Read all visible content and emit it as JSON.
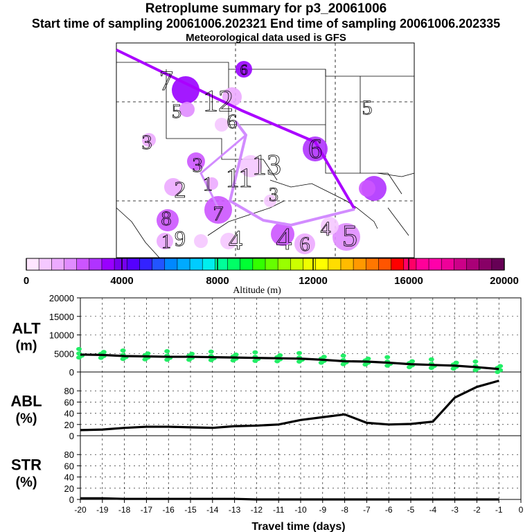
{
  "header": {
    "title": "Retroplume summary for p3_20061006",
    "sampling": "Start time of sampling 20061006.202321     End time of sampling 20061006.202335",
    "meteo": "Meteorological data used is GFS"
  },
  "colorbar": {
    "label": "Altitude (m)",
    "tick_labels": [
      "0",
      "4000",
      "8000",
      "12000",
      "16000",
      "20000"
    ],
    "colors": [
      "#ffe6ff",
      "#f5c8ff",
      "#ecaaff",
      "#e08cff",
      "#cc55ff",
      "#b033ff",
      "#9900ff",
      "#7700ee",
      "#5500ff",
      "#3322ff",
      "#2255ff",
      "#0088ff",
      "#00aaff",
      "#00ccff",
      "#00eeee",
      "#00ff99",
      "#00ff66",
      "#00ff33",
      "#33ff00",
      "#66ff00",
      "#99ff00",
      "#ccff00",
      "#eeff00",
      "#ffff00",
      "#ffdd00",
      "#ffbb00",
      "#ff9900",
      "#ff7700",
      "#ff5500",
      "#ff0000",
      "#ff0066",
      "#ff0099",
      "#ff00aa",
      "#ee0099",
      "#cc0088",
      "#aa0077",
      "#880066",
      "#660055"
    ]
  },
  "map": {
    "path_color": "#aa00ff",
    "path_color_light": "#d28cff",
    "labels": [
      "7",
      "6",
      "12",
      "5",
      "13",
      "3",
      "11",
      "6",
      "6",
      "3",
      "2",
      "5",
      "1",
      "3",
      "8",
      "9",
      "4",
      "1",
      "4",
      "4",
      "6",
      "7",
      "5"
    ]
  },
  "chart_data": [
    {
      "type": "line",
      "panel": "ALT",
      "ylabel": "ALT (m)",
      "x": [
        -20,
        -19,
        -18,
        -17,
        -16,
        -15,
        -14,
        -13,
        -12,
        -11,
        -10,
        -9,
        -8,
        -7,
        -6,
        -5,
        -4,
        -3,
        -2,
        -1
      ],
      "values": [
        4700,
        4600,
        4300,
        4200,
        4100,
        4100,
        4000,
        3900,
        3800,
        3700,
        3600,
        3300,
        2900,
        2800,
        2500,
        2100,
        1900,
        1700,
        1300,
        800
      ],
      "ylim": [
        0,
        20000
      ],
      "ytick_labels": [
        "0",
        "5000",
        "10000",
        "15000",
        "20000"
      ],
      "scatter_color": "#22ee66"
    },
    {
      "type": "line",
      "panel": "ABL",
      "ylabel": "ABL (%)",
      "x": [
        -20,
        -19,
        -18,
        -17,
        -16,
        -15,
        -14,
        -13,
        -12,
        -11,
        -10,
        -9,
        -8,
        -7,
        -6,
        -5,
        -4,
        -3,
        -2,
        -1
      ],
      "values": [
        10,
        11,
        14,
        16,
        16,
        15,
        14,
        17,
        18,
        20,
        28,
        33,
        38,
        23,
        20,
        21,
        25,
        68,
        87,
        98
      ],
      "ylim": [
        0,
        100
      ],
      "ytick_labels": [
        "0",
        "20",
        "40",
        "60",
        "80"
      ]
    },
    {
      "type": "line",
      "panel": "STR",
      "ylabel": "STR (%)",
      "x": [
        -20,
        -19,
        -18,
        -17,
        -16,
        -15,
        -14,
        -13,
        -12,
        -11,
        -10,
        -9,
        -8,
        -7,
        -6,
        -5,
        -4,
        -3,
        -2,
        -1
      ],
      "values": [
        2,
        2,
        1,
        1,
        1,
        1,
        1,
        1,
        0,
        0,
        0,
        0,
        0,
        0,
        0,
        0,
        0,
        0,
        0,
        0
      ],
      "ylim": [
        0,
        100
      ],
      "ytick_labels": [
        "0",
        "20",
        "40",
        "60",
        "80"
      ]
    }
  ],
  "xaxis": {
    "label": "Travel time (days)",
    "tick_labels": [
      "-20",
      "-19",
      "-18",
      "-17",
      "-16",
      "-15",
      "-14",
      "-13",
      "-12",
      "-11",
      "-10",
      "-9",
      "-8",
      "-7",
      "-6",
      "-5",
      "-4",
      "-3",
      "-2",
      "-1",
      "0"
    ]
  },
  "panel_labels": [
    {
      "name": "ALT",
      "unit": "(m)"
    },
    {
      "name": "ABL",
      "unit": "(%)"
    },
    {
      "name": "STR",
      "unit": "(%)"
    }
  ]
}
